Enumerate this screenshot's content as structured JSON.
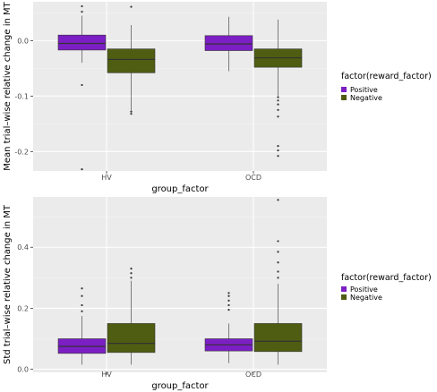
{
  "colors": {
    "panel_bg": "#ebebeb",
    "grid_major": "#ffffff",
    "grid_minor": "#f4f4f4",
    "axis_text": "#4d4d4d",
    "title_text": "#000000",
    "whisker": "#333333",
    "positive": "#7b1fc4",
    "negative": "#4e5d12"
  },
  "legend": {
    "title": "factor(reward_factor)",
    "items": [
      {
        "label": "Positive",
        "color": "#7b1fc4"
      },
      {
        "label": "Negative",
        "color": "#4e5d12"
      }
    ]
  },
  "chart_data": [
    {
      "type": "box",
      "xlabel": "group_factor",
      "ylabel": "Mean trial–wise relative change in MT",
      "categories": [
        "HV",
        "OCD"
      ],
      "ylim": [
        -0.235,
        0.07
      ],
      "yticks": [
        -0.2,
        -0.1,
        0.0
      ],
      "yticklabels": [
        "-0.2",
        "-0.1",
        "0.0"
      ],
      "grid": true,
      "legend_position": "right",
      "series": [
        {
          "name": "Positive",
          "boxes": [
            {
              "category": "HV",
              "whisker_low": -0.04,
              "q1": -0.017,
              "median": -0.005,
              "q3": 0.01,
              "whisker_high": 0.045,
              "outliers": [
                0.052,
                0.062,
                -0.08,
                -0.232
              ]
            },
            {
              "category": "OCD",
              "whisker_low": -0.055,
              "q1": -0.018,
              "median": -0.006,
              "q3": 0.009,
              "whisker_high": 0.043,
              "outliers": []
            }
          ]
        },
        {
          "name": "Negative",
          "boxes": [
            {
              "category": "HV",
              "whisker_low": -0.126,
              "q1": -0.058,
              "median": -0.034,
              "q3": -0.015,
              "whisker_high": 0.028,
              "outliers": [
                0.061,
                -0.128,
                -0.132
              ]
            },
            {
              "category": "OCD",
              "whisker_low": -0.1,
              "q1": -0.048,
              "median": -0.031,
              "q3": -0.015,
              "whisker_high": 0.038,
              "outliers": [
                -0.102,
                -0.108,
                -0.115,
                -0.125,
                -0.137,
                -0.19,
                -0.198,
                -0.208
              ]
            }
          ]
        }
      ]
    },
    {
      "type": "box",
      "xlabel": "group_factor",
      "ylabel": "Std trial–wise relative change in MT",
      "categories": [
        "HV",
        "OCD"
      ],
      "ylim": [
        -0.01,
        0.565
      ],
      "yticks": [
        0.0,
        0.2,
        0.4
      ],
      "yticklabels": [
        "0.0",
        "0.2",
        "0.4"
      ],
      "grid": true,
      "legend_position": "right",
      "series": [
        {
          "name": "Positive",
          "boxes": [
            {
              "category": "HV",
              "whisker_low": 0.015,
              "q1": 0.052,
              "median": 0.075,
              "q3": 0.1,
              "whisker_high": 0.175,
              "outliers": [
                0.19,
                0.21,
                0.24,
                0.265
              ]
            },
            {
              "category": "OCD",
              "whisker_low": 0.02,
              "q1": 0.06,
              "median": 0.08,
              "q3": 0.1,
              "whisker_high": 0.15,
              "outliers": [
                0.195,
                0.21,
                0.225,
                0.24,
                0.25
              ]
            }
          ]
        },
        {
          "name": "Negative",
          "boxes": [
            {
              "category": "HV",
              "whisker_low": 0.015,
              "q1": 0.055,
              "median": 0.085,
              "q3": 0.15,
              "whisker_high": 0.29,
              "outliers": [
                0.3,
                0.315,
                0.33
              ]
            },
            {
              "category": "OCD",
              "whisker_low": 0.015,
              "q1": 0.058,
              "median": 0.092,
              "q3": 0.15,
              "whisker_high": 0.28,
              "outliers": [
                0.3,
                0.32,
                0.35,
                0.385,
                0.42,
                0.555
              ]
            }
          ]
        }
      ]
    }
  ]
}
